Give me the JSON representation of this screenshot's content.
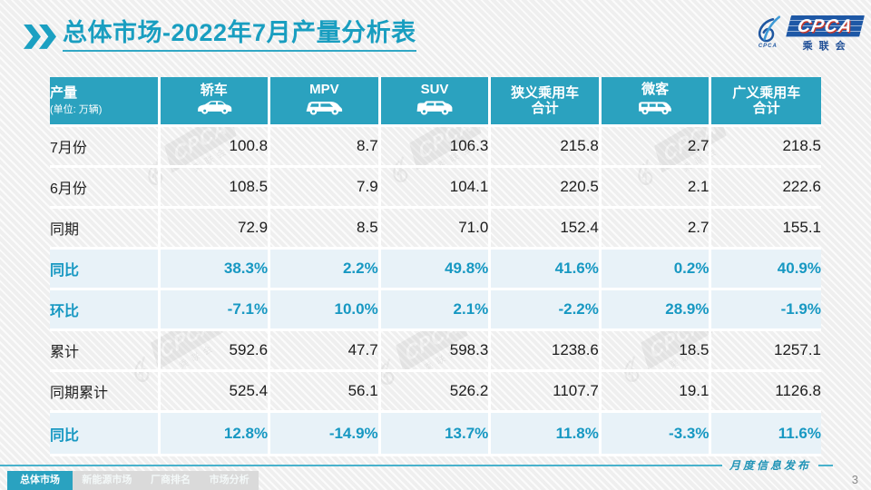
{
  "slide": {
    "title": "总体市场-2022年7月产量分析表",
    "page_number": "3",
    "footer_note": "月度信息发布"
  },
  "logo": {
    "wordmark": "CPCA",
    "subtext": "乘联会",
    "emblem_text": "CPCA"
  },
  "watermark_text": {
    "wordmark": "CPCA",
    "subtext": "乘联会"
  },
  "footer_tabs": [
    {
      "label": "总体市场",
      "active": true
    },
    {
      "label": "新能源市场",
      "active": false
    },
    {
      "label": "厂商排名",
      "active": false
    },
    {
      "label": "市场分析",
      "active": false
    }
  ],
  "table": {
    "unit_label": "产量",
    "unit_sub": "(单位: 万辆)",
    "columns": [
      {
        "label": "轿车",
        "icon": "sedan-car-icon"
      },
      {
        "label": "MPV",
        "icon": "mpv-car-icon"
      },
      {
        "label": "SUV",
        "icon": "suv-car-icon"
      },
      {
        "label": "狭义乘用车\n合计",
        "icon": null
      },
      {
        "label": "微客",
        "icon": "microvan-icon"
      },
      {
        "label": "广义乘用车\n合计",
        "icon": null
      }
    ],
    "rows": [
      {
        "label": "7月份",
        "type": "data",
        "values": [
          "100.8",
          "8.7",
          "106.3",
          "215.8",
          "2.7",
          "218.5"
        ]
      },
      {
        "label": "6月份",
        "type": "data",
        "values": [
          "108.5",
          "7.9",
          "104.1",
          "220.5",
          "2.1",
          "222.6"
        ]
      },
      {
        "label": "同期",
        "type": "data",
        "values": [
          "72.9",
          "8.5",
          "71.0",
          "152.4",
          "2.7",
          "155.1"
        ]
      },
      {
        "label": "同比",
        "type": "ratio",
        "values": [
          "38.3%",
          "2.2%",
          "49.8%",
          "41.6%",
          "0.2%",
          "40.9%"
        ]
      },
      {
        "label": "环比",
        "type": "ratio",
        "values": [
          "-7.1%",
          "10.0%",
          "2.1%",
          "-2.2%",
          "28.9%",
          "-1.9%"
        ]
      },
      {
        "label": "累计",
        "type": "data",
        "values": [
          "592.6",
          "47.7",
          "598.3",
          "1238.6",
          "18.5",
          "1257.1"
        ]
      },
      {
        "label": "同期累计",
        "type": "data",
        "values": [
          "525.4",
          "56.1",
          "526.2",
          "1107.7",
          "19.1",
          "1126.8"
        ]
      },
      {
        "label": "同比",
        "type": "ratio",
        "values": [
          "12.8%",
          "-14.9%",
          "13.7%",
          "11.8%",
          "-3.3%",
          "11.6%"
        ]
      }
    ]
  },
  "colors": {
    "accent_teal": "#2BA2BF",
    "title_teal": "#199EC0",
    "ratio_text": "#1798C2",
    "ratio_row_bg": "#E8F2F8",
    "logo_blue": "#1E58A6",
    "logo_red": "#C63A2E",
    "footer_line": "#49B2CC"
  }
}
